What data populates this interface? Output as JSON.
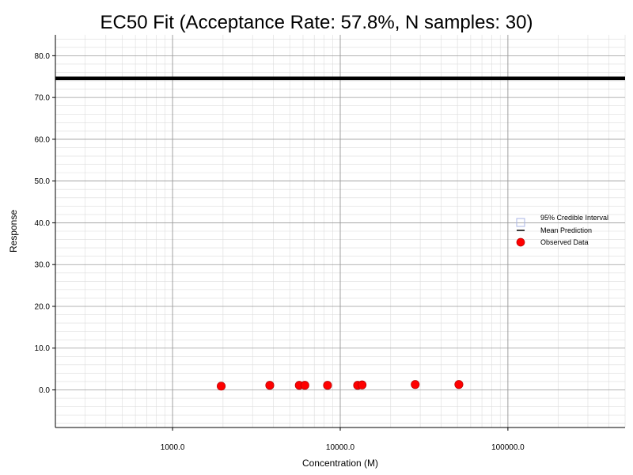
{
  "chart_data": {
    "type": "scatter",
    "title": "EC50 Fit (Acceptance Rate: 57.8%, N samples: 30)",
    "xlabel": "Concentration (M)",
    "ylabel": "Response",
    "xscale": "log",
    "xlim": [
      200,
      500000
    ],
    "ylim": [
      -9,
      85
    ],
    "x_ticks": [
      1000,
      10000,
      100000
    ],
    "x_tick_labels": [
      "1000.0",
      "10000.0",
      "100000.0"
    ],
    "y_ticks": [
      0,
      10,
      20,
      30,
      40,
      50,
      60,
      70,
      80
    ],
    "y_tick_labels": [
      "0.0",
      "10.0",
      "20.0",
      "30.0",
      "40.0",
      "50.0",
      "60.0",
      "70.0",
      "80.0"
    ],
    "grid": "on (major and minor)",
    "legend_position": "right",
    "legend": [
      "95% Credible Interval",
      "Mean Prediction",
      "Observed Data"
    ],
    "series": [
      {
        "name": "Mean Prediction",
        "kind": "line",
        "color": "#000000",
        "x": [
          200,
          500000
        ],
        "y": [
          74.6,
          74.6
        ]
      },
      {
        "name": "Observed Data",
        "kind": "scatter",
        "color": "#ff0000",
        "x": [
          1950,
          3800,
          5700,
          6150,
          8400,
          12700,
          13500,
          28000,
          51000
        ],
        "y": [
          0.9,
          1.1,
          1.1,
          1.1,
          1.1,
          1.1,
          1.2,
          1.3,
          1.3
        ]
      },
      {
        "name": "95% Credible Interval",
        "kind": "band",
        "color": "#aab4e6",
        "x": [],
        "y": []
      }
    ]
  }
}
